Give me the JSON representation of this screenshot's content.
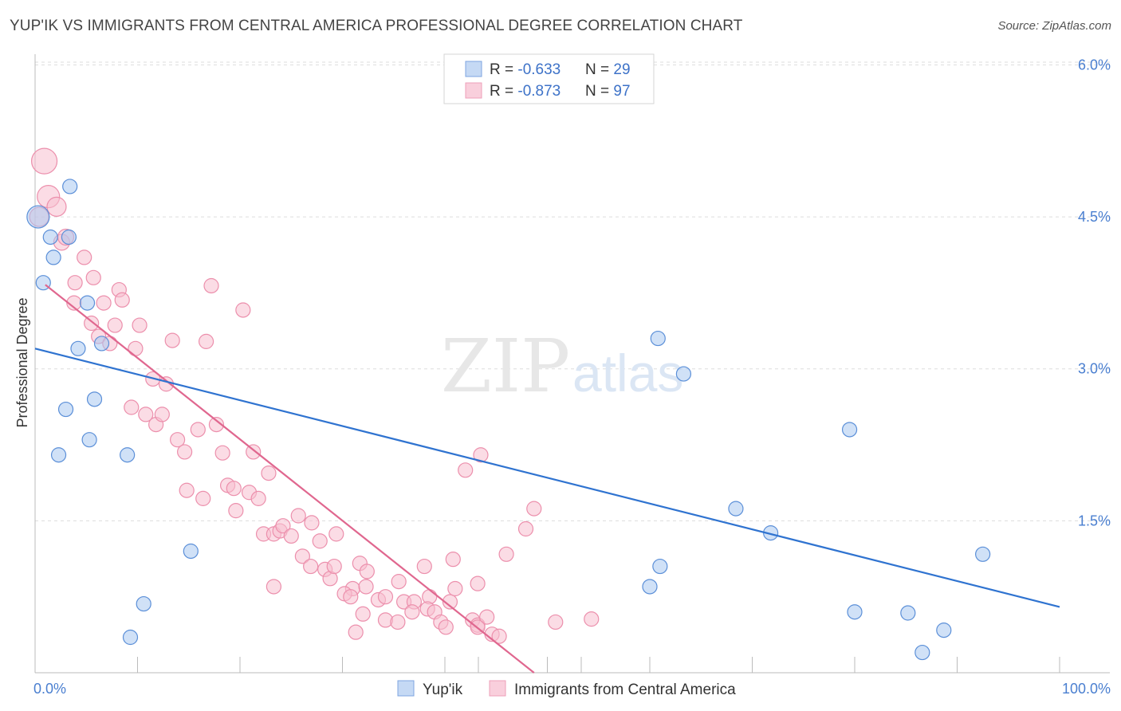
{
  "title": "YUP'IK VS IMMIGRANTS FROM CENTRAL AMERICA PROFESSIONAL DEGREE CORRELATION CHART",
  "source": "Source: ZipAtlas.com",
  "watermark": {
    "zip": "ZIP",
    "atlas": "atlas"
  },
  "colors": {
    "blue_fill": "#aac8f0",
    "blue_stroke": "#5b8fd8",
    "blue_line": "#2f73d0",
    "pink_fill": "#f7bfd0",
    "pink_stroke": "#ec8fac",
    "pink_line": "#e0678f",
    "grid": "#dddddd",
    "tick_text": "#4a7fd0"
  },
  "legend": {
    "rows": [
      {
        "r_label": "R = ",
        "r_value": "-0.633",
        "n_label": "N = ",
        "n_value": "29"
      },
      {
        "r_label": "R = ",
        "r_value": "-0.873",
        "n_label": "N = ",
        "n_value": "97"
      }
    ]
  },
  "chart_data": {
    "type": "scatter",
    "title": "YUP'IK VS IMMIGRANTS FROM CENTRAL AMERICA PROFESSIONAL DEGREE CORRELATION CHART",
    "xlabel": "",
    "ylabel": "Professional Degree",
    "xlim": [
      0,
      100
    ],
    "ylim": [
      0,
      6.2
    ],
    "x_tick_labels": [
      "0.0%",
      "100.0%"
    ],
    "y_ticks": [
      1.5,
      3.0,
      4.5,
      6.0
    ],
    "y_tick_labels": [
      "1.5%",
      "3.0%",
      "4.5%",
      "6.0%"
    ],
    "grid": true,
    "legend_position": "top-center",
    "series": [
      {
        "name": "Yup'ik",
        "color": "blue",
        "trend": {
          "x": [
            0,
            100
          ],
          "y": [
            3.2,
            0.65
          ]
        },
        "points": [
          [
            0.3,
            4.5,
            14
          ],
          [
            1.5,
            4.3,
            9
          ],
          [
            3.4,
            4.8,
            9
          ],
          [
            1.8,
            4.1,
            9
          ],
          [
            3.3,
            4.3,
            9
          ],
          [
            0.8,
            3.85,
            9
          ],
          [
            5.1,
            3.65,
            9
          ],
          [
            6.5,
            3.25,
            9
          ],
          [
            4.2,
            3.2,
            9
          ],
          [
            5.8,
            2.7,
            9
          ],
          [
            3.0,
            2.6,
            9
          ],
          [
            5.3,
            2.3,
            9
          ],
          [
            2.3,
            2.15,
            9
          ],
          [
            9.0,
            2.15,
            9
          ],
          [
            15.2,
            1.2,
            9
          ],
          [
            10.6,
            0.68,
            9
          ],
          [
            9.3,
            0.35,
            9
          ],
          [
            60.8,
            3.3,
            9
          ],
          [
            63.3,
            2.95,
            9
          ],
          [
            79.5,
            2.4,
            9
          ],
          [
            68.4,
            1.62,
            9
          ],
          [
            71.8,
            1.38,
            9
          ],
          [
            61.0,
            1.05,
            9
          ],
          [
            60.0,
            0.85,
            9
          ],
          [
            80.0,
            0.6,
            9
          ],
          [
            85.2,
            0.59,
            9
          ],
          [
            92.5,
            1.17,
            9
          ],
          [
            88.7,
            0.42,
            9
          ],
          [
            86.6,
            0.2,
            9
          ]
        ]
      },
      {
        "name": "Immigrants from Central America",
        "color": "pink",
        "trend": {
          "x": [
            1,
            48.7
          ],
          "y": [
            3.83,
            0.0
          ]
        },
        "points": [
          [
            0.9,
            5.05,
            16
          ],
          [
            1.3,
            4.7,
            14
          ],
          [
            0.4,
            4.5,
            12
          ],
          [
            2.1,
            4.6,
            12
          ],
          [
            2.6,
            4.25,
            10
          ],
          [
            3.0,
            4.3,
            10
          ],
          [
            4.8,
            4.1,
            9
          ],
          [
            3.9,
            3.85,
            9
          ],
          [
            5.7,
            3.9,
            9
          ],
          [
            3.8,
            3.65,
            9
          ],
          [
            8.2,
            3.78,
            9
          ],
          [
            6.7,
            3.65,
            9
          ],
          [
            8.5,
            3.68,
            9
          ],
          [
            5.5,
            3.45,
            9
          ],
          [
            7.8,
            3.43,
            9
          ],
          [
            10.2,
            3.43,
            9
          ],
          [
            6.2,
            3.32,
            9
          ],
          [
            7.3,
            3.25,
            9
          ],
          [
            9.8,
            3.2,
            9
          ],
          [
            13.4,
            3.28,
            9
          ],
          [
            16.7,
            3.27,
            9
          ],
          [
            17.2,
            3.82,
            9
          ],
          [
            20.3,
            3.58,
            9
          ],
          [
            11.5,
            2.9,
            9
          ],
          [
            12.8,
            2.85,
            9
          ],
          [
            9.4,
            2.62,
            9
          ],
          [
            10.8,
            2.55,
            9
          ],
          [
            11.8,
            2.45,
            9
          ],
          [
            12.4,
            2.55,
            9
          ],
          [
            13.9,
            2.3,
            9
          ],
          [
            14.6,
            2.18,
            9
          ],
          [
            15.9,
            2.4,
            9
          ],
          [
            17.7,
            2.45,
            9
          ],
          [
            18.3,
            2.17,
            9
          ],
          [
            21.3,
            2.18,
            9
          ],
          [
            22.8,
            1.97,
            9
          ],
          [
            14.8,
            1.8,
            9
          ],
          [
            16.4,
            1.72,
            9
          ],
          [
            18.8,
            1.85,
            9
          ],
          [
            19.4,
            1.82,
            9
          ],
          [
            20.9,
            1.78,
            9
          ],
          [
            21.8,
            1.72,
            9
          ],
          [
            19.6,
            1.6,
            9
          ],
          [
            22.3,
            1.37,
            9
          ],
          [
            23.3,
            1.37,
            9
          ],
          [
            23.9,
            1.4,
            9
          ],
          [
            24.2,
            1.45,
            9
          ],
          [
            25.0,
            1.35,
            9
          ],
          [
            25.7,
            1.55,
            9
          ],
          [
            27.0,
            1.48,
            9
          ],
          [
            27.8,
            1.3,
            9
          ],
          [
            29.4,
            1.37,
            9
          ],
          [
            26.1,
            1.15,
            9
          ],
          [
            26.9,
            1.05,
            9
          ],
          [
            28.3,
            1.02,
            9
          ],
          [
            28.8,
            0.93,
            9
          ],
          [
            29.2,
            1.05,
            9
          ],
          [
            23.3,
            0.85,
            9
          ],
          [
            31.0,
            0.83,
            9
          ],
          [
            30.2,
            0.78,
            9
          ],
          [
            30.8,
            0.75,
            9
          ],
          [
            32.3,
            0.85,
            9
          ],
          [
            31.7,
            1.08,
            9
          ],
          [
            32.4,
            1.0,
            9
          ],
          [
            33.5,
            0.72,
            9
          ],
          [
            34.2,
            0.75,
            9
          ],
          [
            35.5,
            0.9,
            9
          ],
          [
            36.0,
            0.7,
            9
          ],
          [
            37.0,
            0.7,
            9
          ],
          [
            38.5,
            0.75,
            9
          ],
          [
            38.0,
            1.05,
            9
          ],
          [
            40.5,
            0.7,
            9
          ],
          [
            41.0,
            0.83,
            9
          ],
          [
            43.2,
            0.88,
            9
          ],
          [
            40.8,
            1.12,
            9
          ],
          [
            32.0,
            0.58,
            9
          ],
          [
            34.2,
            0.52,
            9
          ],
          [
            35.4,
            0.5,
            9
          ],
          [
            36.8,
            0.6,
            9
          ],
          [
            38.3,
            0.63,
            9
          ],
          [
            39.0,
            0.6,
            9
          ],
          [
            39.6,
            0.5,
            9
          ],
          [
            40.1,
            0.45,
            9
          ],
          [
            42.7,
            0.52,
            9
          ],
          [
            43.2,
            0.47,
            9
          ],
          [
            44.1,
            0.55,
            9
          ],
          [
            44.6,
            0.38,
            9
          ],
          [
            45.3,
            0.36,
            9
          ],
          [
            31.3,
            0.4,
            9
          ],
          [
            43.2,
            0.45,
            9
          ],
          [
            42.0,
            2.0,
            9
          ],
          [
            43.5,
            2.15,
            9
          ],
          [
            48.7,
            1.62,
            9
          ],
          [
            47.9,
            1.42,
            9
          ],
          [
            46.0,
            1.17,
            9
          ],
          [
            50.8,
            0.5,
            9
          ],
          [
            54.3,
            0.53,
            9
          ]
        ]
      }
    ]
  }
}
